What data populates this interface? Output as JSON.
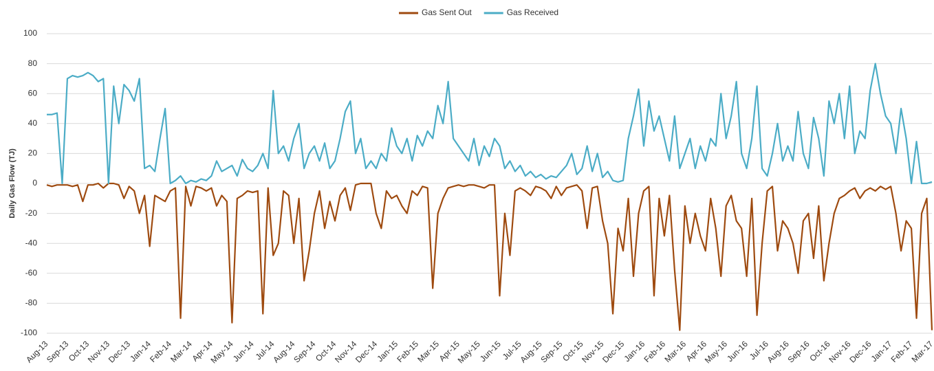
{
  "chart_data": {
    "type": "line",
    "y_label": "Daily Gas Flow (TJ)",
    "categories": [
      "Aug-13",
      null,
      null,
      null,
      "Sep-13",
      null,
      null,
      null,
      "Oct-13",
      null,
      null,
      null,
      "Nov-13",
      null,
      null,
      null,
      "Dec-13",
      null,
      null,
      null,
      "Jan-14",
      null,
      null,
      null,
      "Feb-14",
      null,
      null,
      null,
      "Mar-14",
      null,
      null,
      null,
      "Apr-14",
      null,
      null,
      null,
      "May-14",
      null,
      null,
      null,
      "Jun-14",
      null,
      null,
      null,
      "Jul-14",
      null,
      null,
      null,
      "Aug-14",
      null,
      null,
      null,
      "Sep-14",
      null,
      null,
      null,
      "Oct-14",
      null,
      null,
      null,
      "Nov-14",
      null,
      null,
      null,
      "Dec-14",
      null,
      null,
      null,
      "Jan-15",
      null,
      null,
      null,
      "Feb-15",
      null,
      null,
      null,
      "Mar-15",
      null,
      null,
      null,
      "Apr-15",
      null,
      null,
      null,
      "May-15",
      null,
      null,
      null,
      "Jun-15",
      null,
      null,
      null,
      "Jul-15",
      null,
      null,
      null,
      "Aug-15",
      null,
      null,
      null,
      "Sep-15",
      null,
      null,
      null,
      "Oct-15",
      null,
      null,
      null,
      "Nov-15",
      null,
      null,
      null,
      "Dec-15",
      null,
      null,
      null,
      "Jan-16",
      null,
      null,
      null,
      "Feb-16",
      null,
      null,
      null,
      "Mar-16",
      null,
      null,
      null,
      "Apr-16",
      null,
      null,
      null,
      "May-16",
      null,
      null,
      null,
      "Jun-16",
      null,
      null,
      null,
      "Jul-16",
      null,
      null,
      null,
      "Aug-16",
      null,
      null,
      null,
      "Sep-16",
      null,
      null,
      null,
      "Oct-16",
      null,
      null,
      null,
      "Nov-16",
      null,
      null,
      null,
      "Dec-16",
      null,
      null,
      null,
      "Jan-17",
      null,
      null,
      null,
      "Feb-17",
      null,
      null,
      null,
      "Mar-17"
    ],
    "series": [
      {
        "name": "Gas Sent Out",
        "color": "#9e4a0f",
        "values": [
          -1,
          -2,
          -1,
          -1,
          -1,
          -2,
          -1,
          -12,
          -1,
          -1,
          0,
          -3,
          0,
          0,
          -1,
          -10,
          -2,
          -5,
          -20,
          -8,
          -42,
          -8,
          -10,
          -12,
          -5,
          -3,
          -90,
          -2,
          -15,
          -2,
          -3,
          -5,
          -3,
          -15,
          -8,
          -12,
          -93,
          -10,
          -8,
          -5,
          -6,
          -5,
          -87,
          -3,
          -48,
          -40,
          -5,
          -8,
          -40,
          -10,
          -65,
          -45,
          -20,
          -5,
          -30,
          -12,
          -25,
          -8,
          -3,
          -18,
          -1,
          0,
          0,
          0,
          -20,
          -30,
          -5,
          -10,
          -8,
          -15,
          -20,
          -5,
          -8,
          -2,
          -3,
          -70,
          -20,
          -10,
          -3,
          -2,
          -1,
          -2,
          -1,
          -1,
          -2,
          -3,
          -1,
          -1,
          -75,
          -20,
          -48,
          -5,
          -3,
          -5,
          -8,
          -2,
          -3,
          -5,
          -10,
          -2,
          -8,
          -3,
          -2,
          -1,
          -5,
          -30,
          -3,
          -2,
          -25,
          -40,
          -87,
          -30,
          -45,
          -10,
          -62,
          -20,
          -5,
          -2,
          -75,
          -10,
          -35,
          -8,
          -58,
          -98,
          -15,
          -40,
          -20,
          -35,
          -45,
          -10,
          -30,
          -62,
          -15,
          -8,
          -25,
          -30,
          -62,
          -10,
          -88,
          -40,
          -5,
          -2,
          -45,
          -25,
          -30,
          -40,
          -60,
          -25,
          -20,
          -50,
          -15,
          -65,
          -40,
          -20,
          -10,
          -8,
          -5,
          -3,
          -10,
          -5,
          -3,
          -5,
          -2,
          -4,
          -2,
          -20,
          -45,
          -25,
          -30,
          -90,
          -20,
          -10,
          -98
        ]
      },
      {
        "name": "Gas Received",
        "color": "#4bacc6",
        "values": [
          46,
          46,
          47,
          0,
          70,
          72,
          71,
          72,
          74,
          72,
          68,
          70,
          0,
          65,
          40,
          66,
          62,
          55,
          70,
          10,
          12,
          8,
          30,
          50,
          0,
          2,
          5,
          0,
          2,
          1,
          3,
          2,
          5,
          15,
          8,
          10,
          12,
          5,
          16,
          10,
          8,
          12,
          20,
          10,
          62,
          20,
          25,
          15,
          30,
          40,
          10,
          20,
          25,
          15,
          27,
          10,
          15,
          30,
          48,
          55,
          20,
          30,
          10,
          15,
          10,
          20,
          15,
          37,
          25,
          20,
          30,
          15,
          32,
          25,
          35,
          30,
          52,
          40,
          68,
          30,
          25,
          20,
          15,
          30,
          12,
          25,
          18,
          30,
          25,
          10,
          15,
          8,
          12,
          5,
          8,
          4,
          6,
          3,
          5,
          4,
          8,
          12,
          20,
          6,
          10,
          25,
          8,
          20,
          4,
          8,
          2,
          1,
          2,
          30,
          45,
          63,
          25,
          55,
          35,
          45,
          30,
          15,
          45,
          10,
          20,
          30,
          10,
          25,
          15,
          30,
          25,
          60,
          30,
          45,
          68,
          20,
          10,
          30,
          65,
          10,
          5,
          20,
          40,
          15,
          25,
          15,
          48,
          20,
          10,
          44,
          30,
          5,
          55,
          40,
          60,
          30,
          65,
          20,
          35,
          30,
          62,
          80,
          60,
          45,
          40,
          20,
          50,
          30,
          0,
          28,
          0,
          0,
          1
        ]
      }
    ],
    "ylim": [
      -100,
      100
    ],
    "yticks": [
      -100,
      -80,
      -60,
      -40,
      -20,
      0,
      20,
      40,
      60,
      80,
      100
    ],
    "grid": true,
    "legend": "top"
  }
}
